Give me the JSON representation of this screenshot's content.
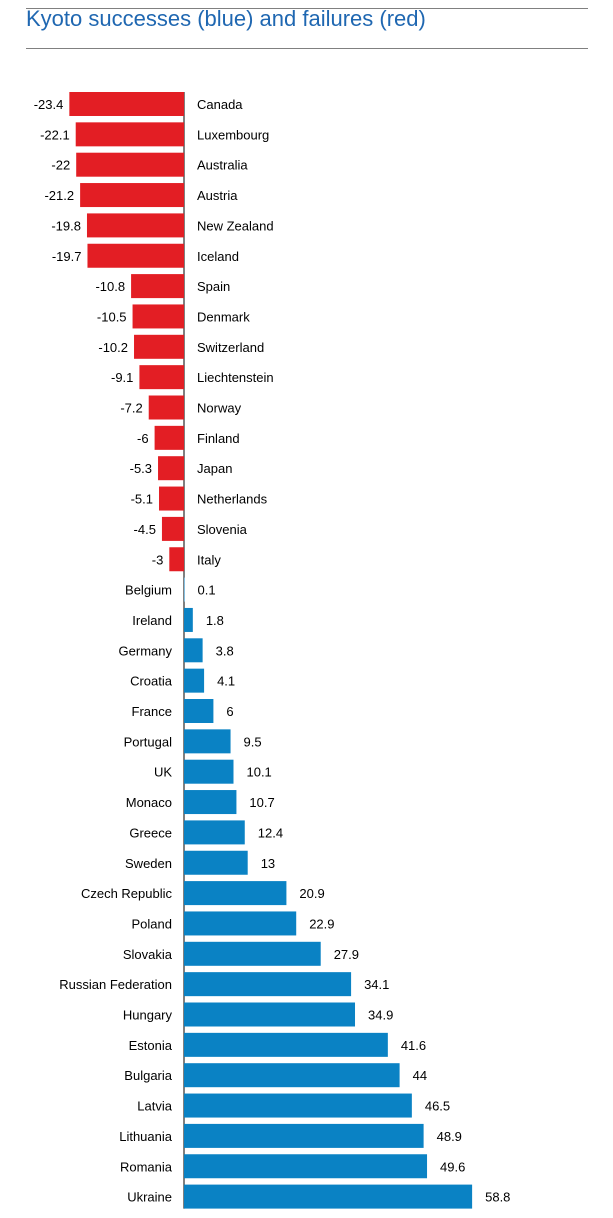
{
  "title": "Kyoto successes (blue) and failures (red)",
  "chart_data": {
    "type": "bar",
    "orientation": "horizontal",
    "title": "Kyoto successes (blue) and failures (red)",
    "xlabel": "",
    "ylabel": "",
    "grid": false,
    "legend": "none",
    "colors": {
      "negative": "#e31e24",
      "positive": "#0a82c4"
    },
    "categories": [
      "Canada",
      "Luxembourg",
      "Australia",
      "Austria",
      "New Zealand",
      "Iceland",
      "Spain",
      "Denmark",
      "Switzerland",
      "Liechtenstein",
      "Norway",
      "Finland",
      "Japan",
      "Netherlands",
      "Slovenia",
      "Italy",
      "Belgium",
      "Ireland",
      "Germany",
      "Croatia",
      "France",
      "Portugal",
      "UK",
      "Monaco",
      "Greece",
      "Sweden",
      "Czech Republic",
      "Poland",
      "Slovakia",
      "Russian Federation",
      "Hungary",
      "Estonia",
      "Bulgaria",
      "Latvia",
      "Lithuania",
      "Romania",
      "Ukraine"
    ],
    "values": [
      -23.4,
      -22.1,
      -22,
      -21.2,
      -19.8,
      -19.7,
      -10.8,
      -10.5,
      -10.2,
      -9.1,
      -7.2,
      -6,
      -5.3,
      -5.1,
      -4.5,
      -3,
      0.1,
      1.8,
      3.8,
      4.1,
      6,
      9.5,
      10.1,
      10.7,
      12.4,
      13,
      20.9,
      22.9,
      27.9,
      34.1,
      34.9,
      41.6,
      44,
      46.5,
      48.9,
      49.6,
      58.8
    ],
    "value_labels": [
      "-23.4",
      "-22.1",
      "-22",
      "-21.2",
      "-19.8",
      "-19.7",
      "-10.8",
      "-10.5",
      "-10.2",
      "-9.1",
      "-7.2",
      "-6",
      "-5.3",
      "-5.1",
      "-4.5",
      "-3",
      "0.1",
      "1.8",
      "3.8",
      "4.1",
      "6",
      "9.5",
      "10.1",
      "10.7",
      "12.4",
      "13",
      "20.9",
      "22.9",
      "27.9",
      "34.1",
      "34.9",
      "41.6",
      "44",
      "46.5",
      "48.9",
      "49.6",
      "58.8"
    ]
  }
}
